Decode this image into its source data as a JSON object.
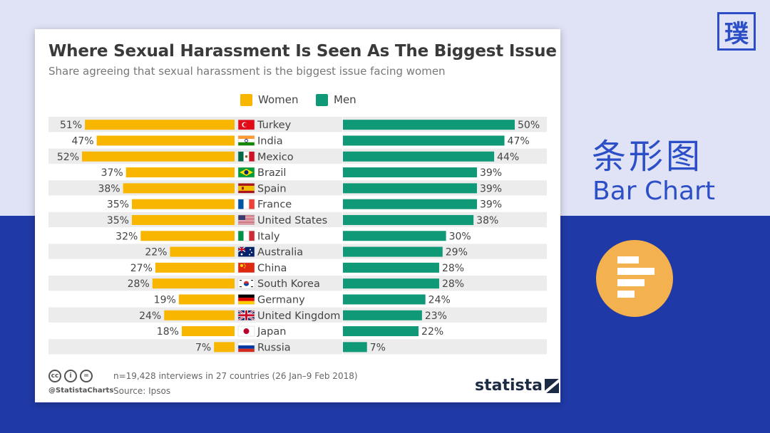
{
  "chart_data": {
    "type": "bar",
    "orientation": "horizontal-diverging",
    "title": "Where Sexual Harassment Is Seen As The Biggest Issue",
    "subtitle": "Share agreeing that sexual harassment is the biggest issue facing women",
    "categories": [
      "Turkey",
      "India",
      "Mexico",
      "Brazil",
      "Spain",
      "France",
      "United States",
      "Italy",
      "Australia",
      "China",
      "South Korea",
      "Germany",
      "United Kingdom",
      "Japan",
      "Russia"
    ],
    "flags": [
      "tr",
      "in",
      "mx",
      "br",
      "es",
      "fr",
      "us",
      "it",
      "au",
      "cn",
      "kr",
      "de",
      "gb",
      "jp",
      "ru"
    ],
    "series": [
      {
        "name": "Women",
        "color": "#f9b600",
        "values": [
          51,
          47,
          52,
          37,
          38,
          35,
          35,
          32,
          22,
          27,
          28,
          19,
          24,
          18,
          7
        ]
      },
      {
        "name": "Men",
        "color": "#109977",
        "values": [
          50,
          47,
          44,
          39,
          39,
          39,
          38,
          30,
          29,
          28,
          28,
          24,
          23,
          22,
          7
        ]
      }
    ],
    "value_suffix": "%",
    "xlim": [
      0,
      52
    ],
    "legend_position": "top"
  },
  "footer": {
    "handle": "@StatistaCharts",
    "note": "n=19,428 interviews in 27 countries (26 Jan–9 Feb 2018)",
    "source": "Source: Ipsos",
    "brand": "statista",
    "cc_icons": [
      "cc",
      "i",
      "="
    ]
  },
  "side": {
    "badge": "璞",
    "title_cn": "条形图",
    "title_en": "Bar Chart",
    "icon": "bar-chart-icon"
  }
}
